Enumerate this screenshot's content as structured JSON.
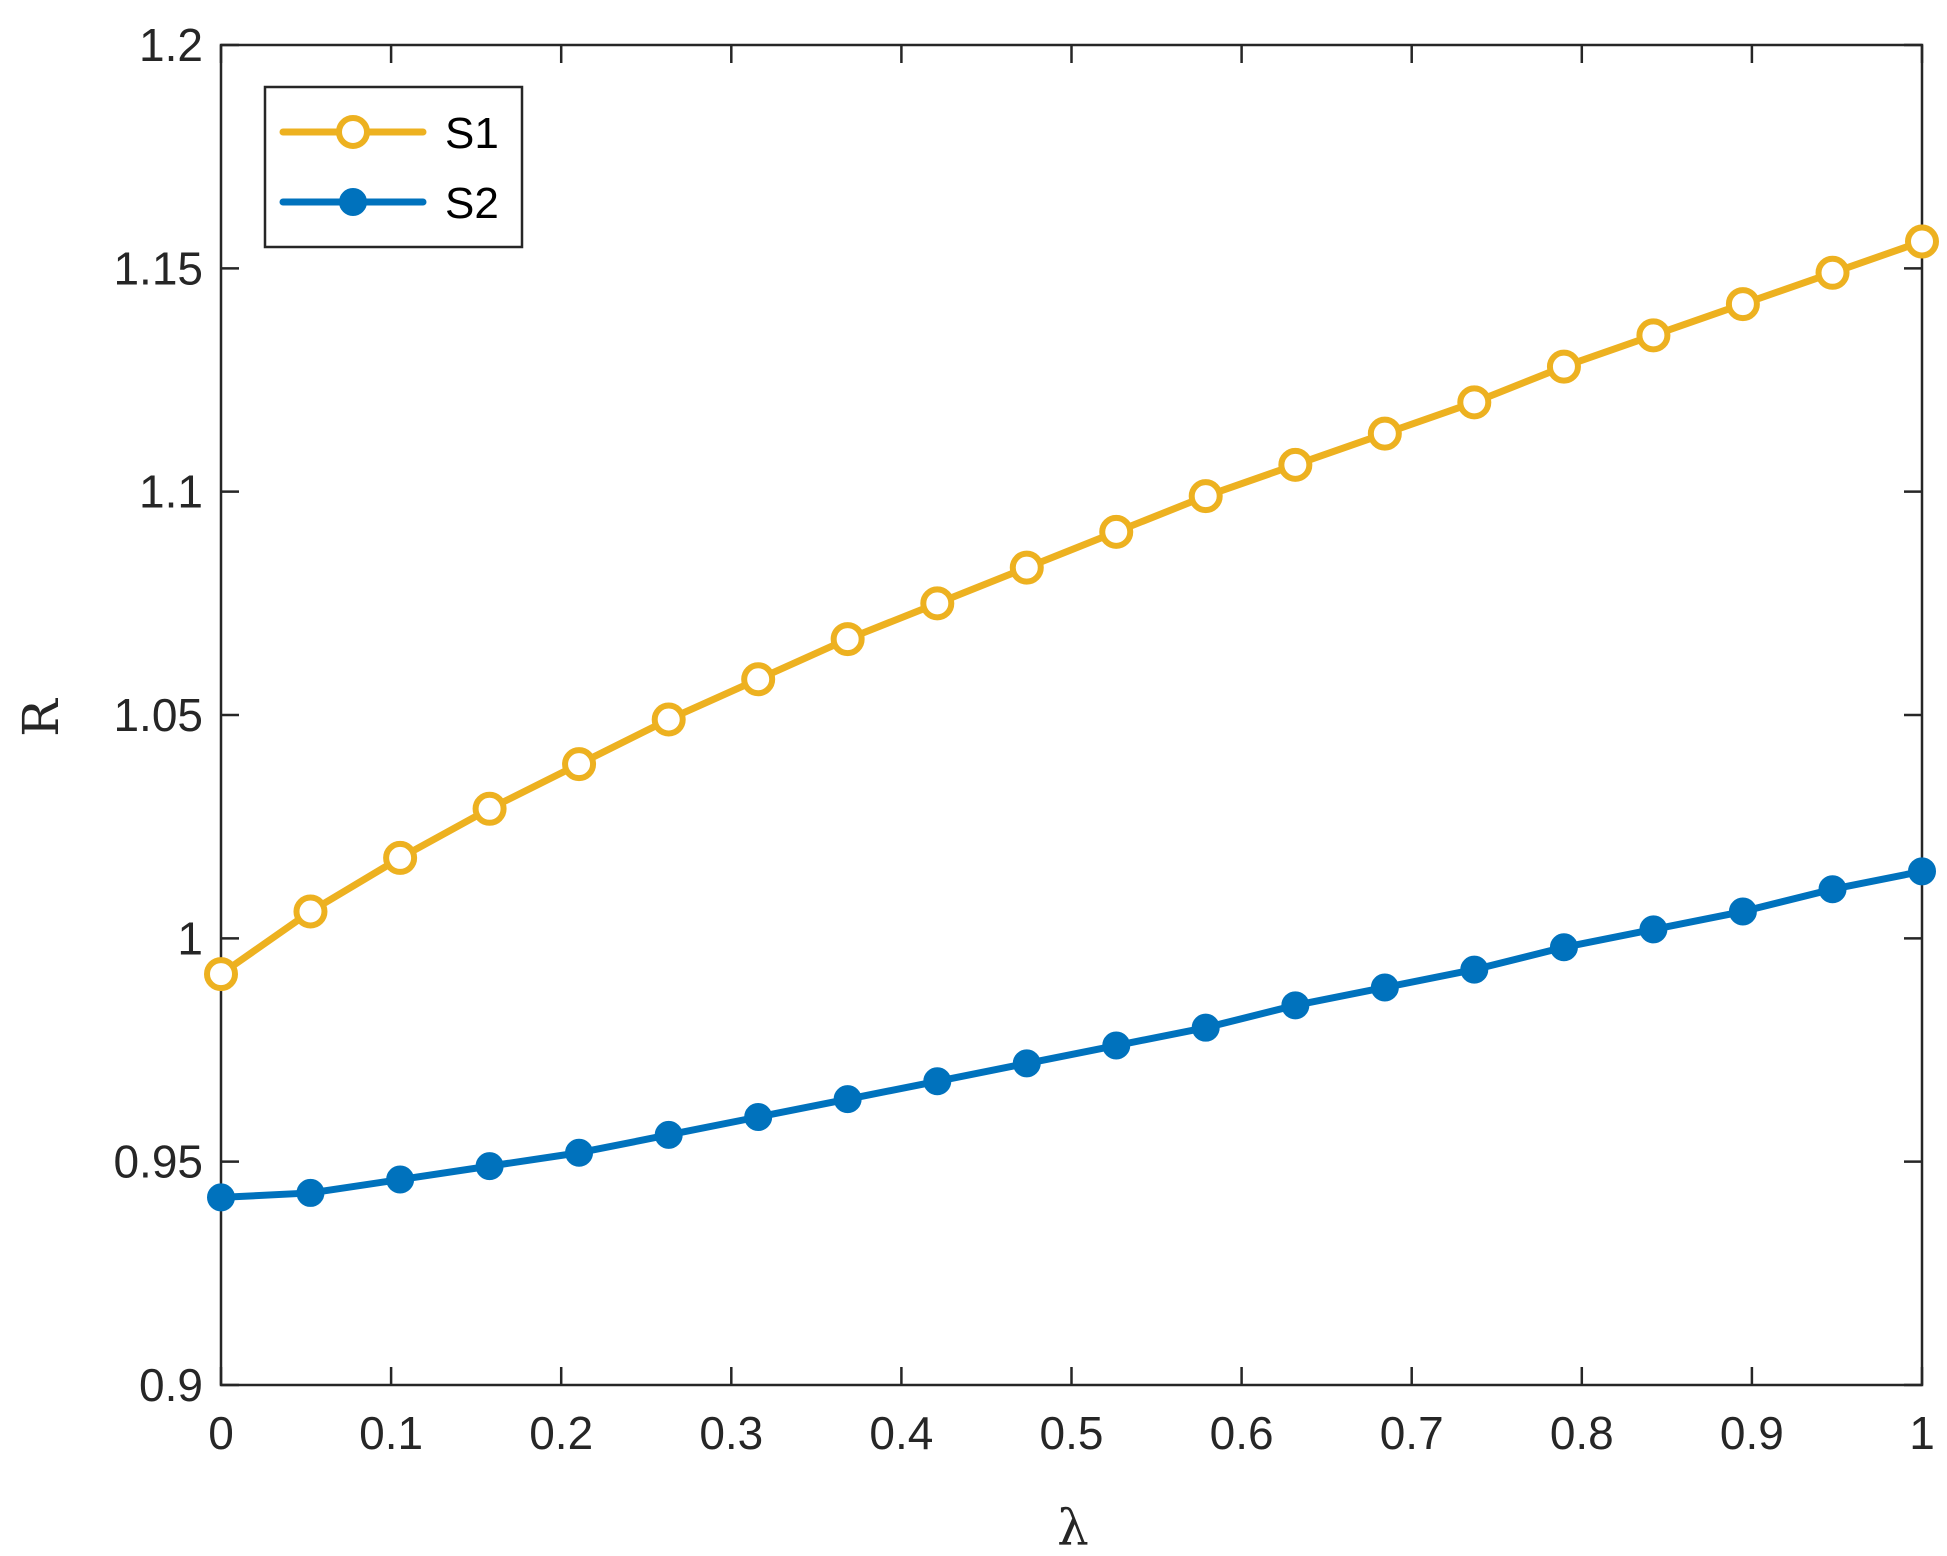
{
  "chart_data": {
    "type": "line",
    "title": "",
    "xlabel": "λ",
    "ylabel": "R",
    "xlim": [
      0,
      1
    ],
    "ylim": [
      0.9,
      1.2
    ],
    "xticks": [
      0,
      0.1,
      0.2,
      0.3,
      0.4,
      0.5,
      0.6,
      0.7,
      0.8,
      0.9,
      1
    ],
    "xtick_labels": [
      "0",
      "0.1",
      "0.2",
      "0.3",
      "0.4",
      "0.5",
      "0.6",
      "0.7",
      "0.8",
      "0.9",
      "1"
    ],
    "yticks": [
      0.9,
      0.95,
      1.0,
      1.05,
      1.1,
      1.15,
      1.2
    ],
    "ytick_labels": [
      "0.9",
      "0.95",
      "1",
      "1.05",
      "1.1",
      "1.15",
      "1.2"
    ],
    "grid": false,
    "legend_position": "top-left",
    "x": [
      0,
      0.0526,
      0.1053,
      0.1579,
      0.2105,
      0.2632,
      0.3158,
      0.3684,
      0.4211,
      0.4737,
      0.5263,
      0.5789,
      0.6316,
      0.6842,
      0.7368,
      0.7895,
      0.8421,
      0.8947,
      0.9474,
      1.0
    ],
    "series": [
      {
        "name": "S1",
        "color": "#EDB120",
        "marker": "open-circle",
        "values": [
          0.992,
          1.006,
          1.018,
          1.029,
          1.039,
          1.049,
          1.058,
          1.067,
          1.075,
          1.083,
          1.091,
          1.099,
          1.106,
          1.113,
          1.12,
          1.128,
          1.135,
          1.142,
          1.149,
          1.156
        ]
      },
      {
        "name": "S2",
        "color": "#0072BD",
        "marker": "filled-circle",
        "values": [
          0.942,
          0.943,
          0.946,
          0.949,
          0.952,
          0.956,
          0.96,
          0.964,
          0.968,
          0.972,
          0.976,
          0.98,
          0.985,
          0.989,
          0.993,
          0.998,
          1.002,
          1.006,
          1.011,
          1.015
        ]
      }
    ]
  }
}
